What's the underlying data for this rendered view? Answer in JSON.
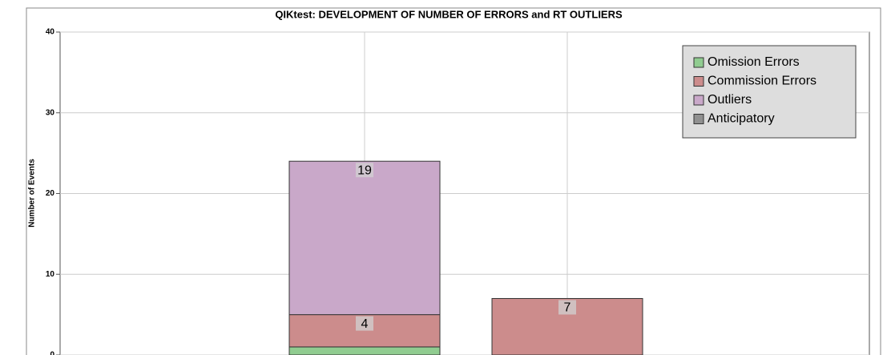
{
  "chart_data": {
    "type": "stacked_bar",
    "title": "QIKtest: DEVELOPMENT OF NUMBER OF ERRORS and RT OUTLIERS",
    "ylabel": "Number of Events",
    "categories": [
      null,
      null
    ],
    "series": [
      {
        "name": "Omission Errors",
        "color": "#90cc90",
        "values": [
          1,
          0
        ]
      },
      {
        "name": "Commission Errors",
        "color": "#cc8c8c",
        "values": [
          4,
          7
        ]
      },
      {
        "name": "Outliers",
        "color": "#c9a8c9",
        "values": [
          19,
          0
        ]
      },
      {
        "name": "Anticipatory",
        "color": "#909090",
        "values": [
          0,
          0
        ]
      }
    ],
    "ylim": [
      0,
      40
    ],
    "yticks": [
      0,
      10,
      20,
      30,
      40
    ],
    "grid": true,
    "legend": "upper right"
  }
}
